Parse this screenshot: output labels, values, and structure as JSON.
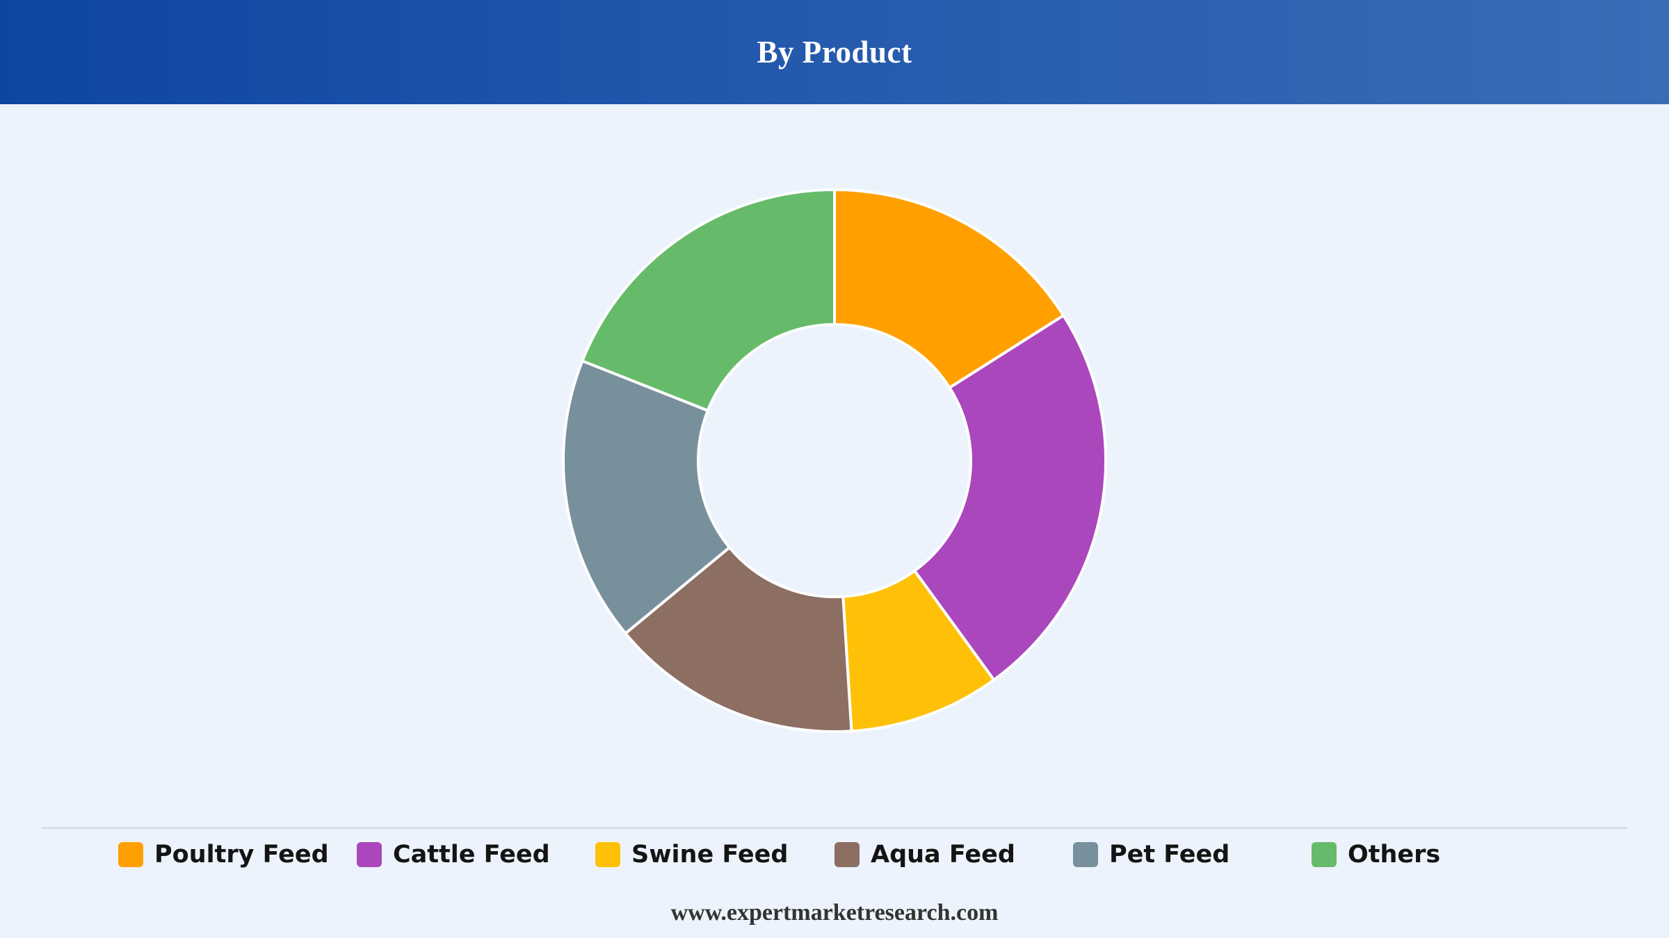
{
  "header": {
    "title": "By Product"
  },
  "chart_data": {
    "type": "pie",
    "donut": true,
    "title": "By Product",
    "categories": [
      "Poultry Feed",
      "Cattle Feed",
      "Swine Feed",
      "Aqua Feed",
      "Pet Feed",
      "Others"
    ],
    "values": [
      16,
      24,
      9,
      15,
      17,
      19
    ],
    "colors": [
      "#ffa000",
      "#ab47bc",
      "#ffc107",
      "#8d6e63",
      "#78909c",
      "#66bb6a"
    ],
    "legend": "bottom",
    "start_angle_deg": 0,
    "direction": "clockwise"
  },
  "legend": {
    "items": [
      {
        "label": "Poultry Feed",
        "color": "#ffa000"
      },
      {
        "label": "Cattle Feed",
        "color": "#ab47bc"
      },
      {
        "label": "Swine Feed",
        "color": "#ffc107"
      },
      {
        "label": "Aqua Feed",
        "color": "#8d6e63"
      },
      {
        "label": "Pet Feed",
        "color": "#78909c"
      },
      {
        "label": "Others",
        "color": "#66bb6a"
      }
    ]
  },
  "footer": {
    "text": "www.expertmarketresearch.com"
  }
}
